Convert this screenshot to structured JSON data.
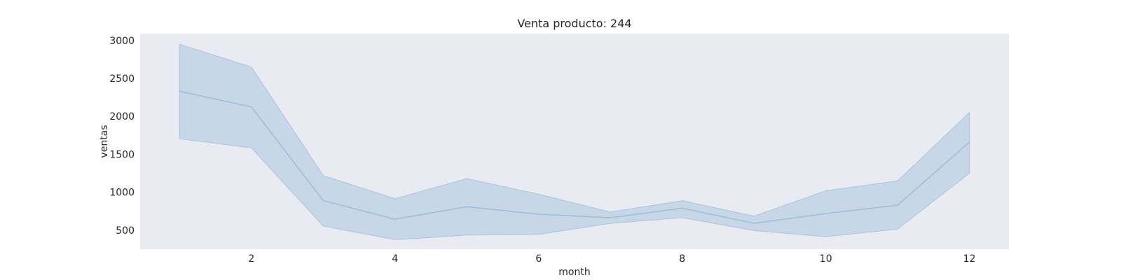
{
  "chart_data": {
    "type": "line",
    "title": "Venta producto: 244",
    "xlabel": "month",
    "ylabel": "ventas",
    "xlim": [
      0.45,
      12.55
    ],
    "ylim": [
      250,
      3090
    ],
    "x_ticks": [
      2,
      4,
      6,
      8,
      10,
      12
    ],
    "y_ticks": [
      500,
      1000,
      1500,
      2000,
      2500,
      3000
    ],
    "grid": false,
    "x": [
      1,
      2,
      3,
      4,
      5,
      6,
      7,
      8,
      9,
      10,
      11,
      12
    ],
    "series": [
      {
        "values": [
          2330,
          2125,
          890,
          645,
          810,
          710,
          665,
          790,
          590,
          720,
          830,
          1660
        ],
        "ci_upper": [
          2950,
          2650,
          1220,
          915,
          1180,
          975,
          740,
          890,
          685,
          1020,
          1150,
          2050
        ],
        "ci_lower": [
          1705,
          1585,
          555,
          375,
          435,
          445,
          590,
          665,
          495,
          415,
          515,
          1250
        ]
      }
    ],
    "colors": {
      "line": "#9ebfdc",
      "band": "#aac6e0",
      "background": "#eaeaf2"
    }
  }
}
